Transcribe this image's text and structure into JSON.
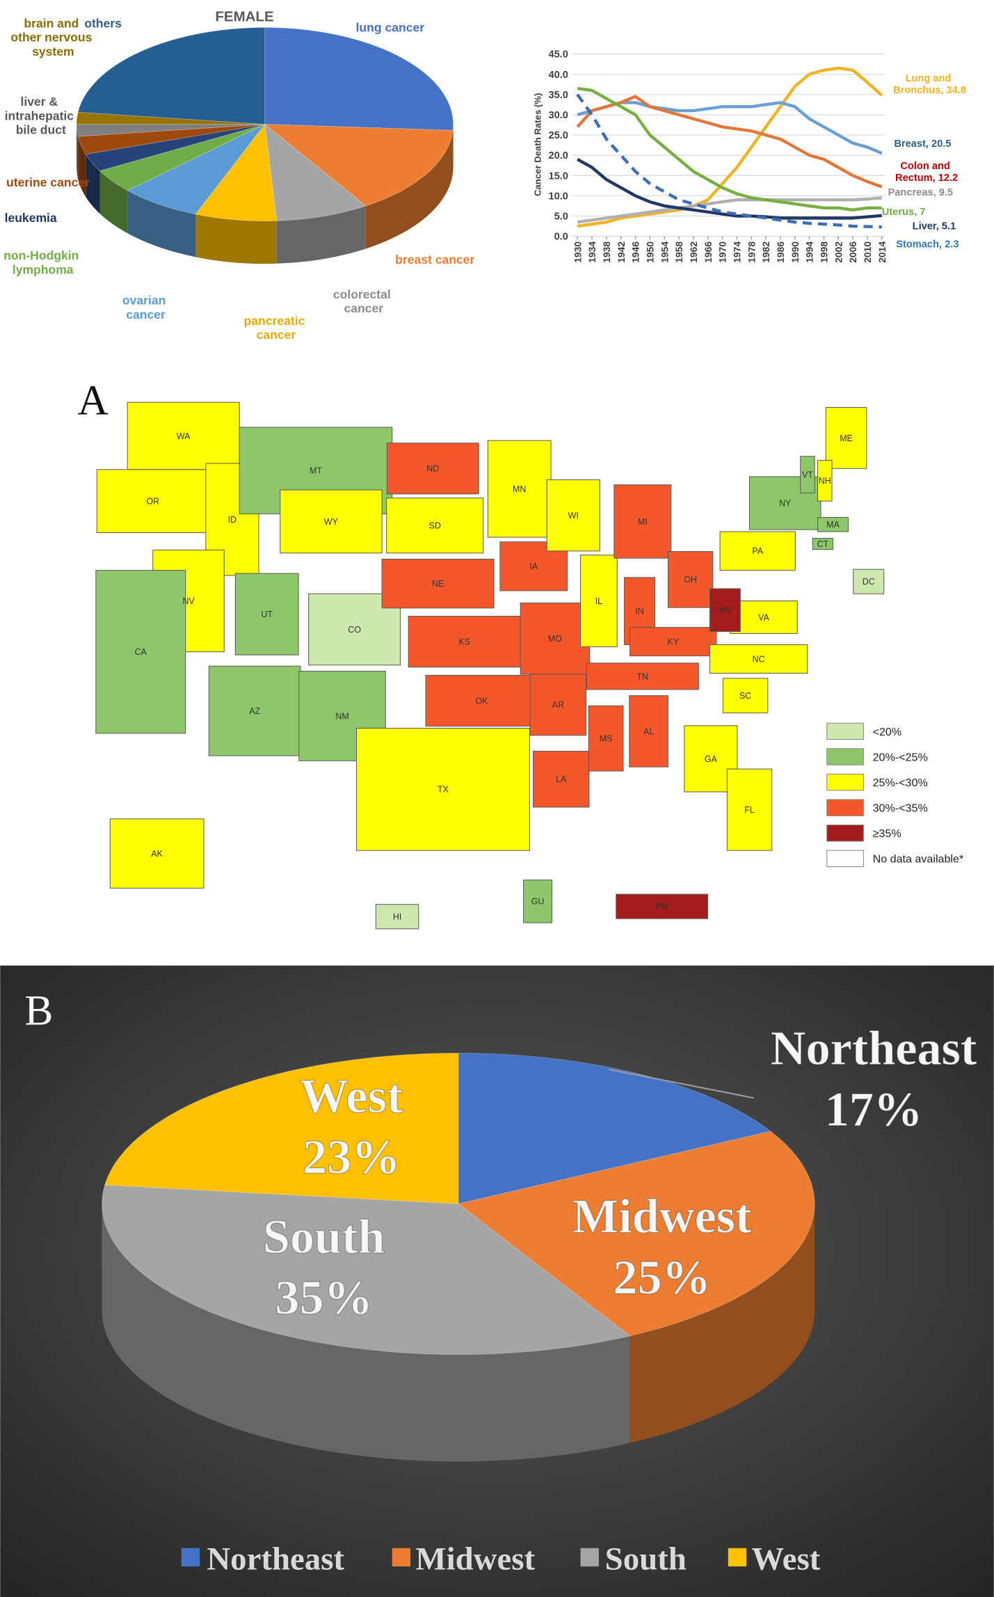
{
  "chart_data": [
    {
      "type": "pie3d",
      "title": "FEMALE",
      "categories": [
        "lung cancer",
        "breast cancer",
        "colorectal\ncancer",
        "pancreatic\ncancer",
        "ovarian\ncancer",
        "non-Hodgkin\nlymphoma",
        "leukemia",
        "uterine cancer",
        "liver &\nintrahepatic\nbile duct",
        "brain and\nother nervous\nsystem",
        "others"
      ],
      "values": [
        26,
        15,
        8,
        7,
        7,
        4,
        3,
        3,
        2,
        2,
        23
      ],
      "colors": [
        "#4472c4",
        "#ed7d31",
        "#a5a5a5",
        "#ffc000",
        "#5b9bd5",
        "#70ad47",
        "#264478",
        "#9e480e",
        "#7f7f7f",
        "#997300",
        "#255e91"
      ],
      "label_colors": [
        "#4472c4",
        "#ed7d31",
        "#8c8c8c",
        "#e6ac00",
        "#5b9bd5",
        "#70ad47",
        "#1f3864",
        "#9e480e",
        "#595959",
        "#8a6d00",
        "#2e5f8a"
      ]
    },
    {
      "type": "line",
      "ylabel": "Cancer Death Rates (%)",
      "x": [
        1930,
        1934,
        1938,
        1942,
        1946,
        1950,
        1954,
        1958,
        1962,
        1966,
        1970,
        1974,
        1978,
        1982,
        1986,
        1990,
        1994,
        1998,
        2002,
        2006,
        2010,
        2014
      ],
      "xlim": [
        1930,
        2014
      ],
      "xticks": [
        1930,
        1934,
        1938,
        1942,
        1946,
        1950,
        1954,
        1958,
        1962,
        1966,
        1970,
        1974,
        1978,
        1982,
        1986,
        1990,
        1994,
        1998,
        2002,
        2006,
        2010,
        2014
      ],
      "ylim": [
        0,
        45
      ],
      "yticks": [
        {
          "value": 0,
          "label": "0.0"
        },
        {
          "value": 5,
          "label": "5.0"
        },
        {
          "value": 10,
          "label": "10.0"
        },
        {
          "value": 15,
          "label": "15.0"
        },
        {
          "value": 20,
          "label": "20.0"
        },
        {
          "value": 25,
          "label": "25.0"
        },
        {
          "value": 30,
          "label": "30.0"
        },
        {
          "value": 35,
          "label": "35.0"
        },
        {
          "value": 40,
          "label": "40.0"
        },
        {
          "value": 45,
          "label": "45.0"
        }
      ],
      "grid": true,
      "series": [
        {
          "name": "Lung and\nBronchus, 34.8",
          "color": "#f0b323",
          "label_color": "#f0b323",
          "values": [
            2.5,
            3,
            3.5,
            4.5,
            5,
            5.5,
            6,
            6.5,
            7.5,
            9,
            13,
            17,
            22,
            27,
            32,
            37,
            40,
            41,
            41.5,
            41,
            38,
            34.8
          ]
        },
        {
          "name": "Breast, 20.5",
          "color": "#6a9fd4",
          "label_color": "#2e5f8a",
          "values": [
            30,
            31,
            32,
            33,
            33,
            32,
            31.5,
            31,
            31,
            31.5,
            32,
            32,
            32,
            32.5,
            33,
            32,
            29,
            27,
            25,
            23,
            22,
            20.5
          ]
        },
        {
          "name": "Colon and\nRectum, 12.2",
          "color": "#e2773b",
          "label_color": "#c00000",
          "values": [
            27,
            31,
            32,
            33,
            34.5,
            32,
            31,
            30,
            29,
            28,
            27,
            26.5,
            26,
            25,
            24,
            22,
            20,
            19,
            17,
            15,
            13.5,
            12.2
          ]
        },
        {
          "name": "Pancreas, 9.5",
          "color": "#b0b0b0",
          "label_color": "#8c8c8c",
          "values": [
            3.5,
            4,
            4.5,
            5,
            5.5,
            6,
            6.5,
            7,
            7.5,
            8,
            8.5,
            9,
            9,
            9,
            9,
            9,
            9,
            9,
            9,
            9,
            9.2,
            9.5
          ]
        },
        {
          "name": "Uterus, 7",
          "color": "#76b041",
          "label_color": "#70ad47",
          "values": [
            36.5,
            36,
            34,
            32,
            30,
            25,
            22,
            19,
            16,
            14,
            12,
            10.5,
            9.5,
            9,
            8.5,
            8,
            7.5,
            7,
            7,
            6.5,
            7,
            7
          ]
        },
        {
          "name": "Liver, 5.1",
          "color": "#1f3864",
          "label_color": "#1f3864",
          "values": [
            19,
            17,
            14,
            12,
            10,
            8.5,
            7.5,
            7,
            6.5,
            6,
            5.5,
            5,
            5,
            4.8,
            4.5,
            4.5,
            4.5,
            4.5,
            4.5,
            4.5,
            4.8,
            5.1
          ]
        },
        {
          "name": "Stomach, 2.3",
          "color": "#3d6eb5",
          "label_color": "#2e75b6",
          "dashed": true,
          "values": [
            35,
            30,
            24,
            20,
            16,
            13,
            11,
            9,
            8,
            7,
            6,
            5.5,
            5,
            4.5,
            4,
            3.5,
            3.2,
            3,
            2.8,
            2.5,
            2.4,
            2.3
          ]
        }
      ]
    },
    {
      "type": "map",
      "panel_label": "A",
      "legend": [
        {
          "label": "<20%",
          "color": "#cfe8b0"
        },
        {
          "label": "20%-<25%",
          "color": "#8dc76a"
        },
        {
          "label": "25%-<30%",
          "color": "#ffff00"
        },
        {
          "label": "30%-<35%",
          "color": "#f4582a"
        },
        {
          "label": "≥35%",
          "color": "#a51c1c"
        },
        {
          "label": "No data available*",
          "color": "#ffffff"
        }
      ],
      "regions": [
        {
          "label": "WA",
          "color": "#ffff00"
        },
        {
          "label": "OR",
          "color": "#ffff00"
        },
        {
          "label": "ID",
          "color": "#ffff00"
        },
        {
          "label": "MT",
          "color": "#8dc76a"
        },
        {
          "label": "WY",
          "color": "#ffff00"
        },
        {
          "label": "NV",
          "color": "#ffff00"
        },
        {
          "label": "CA",
          "color": "#8dc76a"
        },
        {
          "label": "UT",
          "color": "#8dc76a"
        },
        {
          "label": "CO",
          "color": "#cfe8b0"
        },
        {
          "label": "AZ",
          "color": "#8dc76a"
        },
        {
          "label": "NM",
          "color": "#8dc76a"
        },
        {
          "label": "ND",
          "color": "#f4582a"
        },
        {
          "label": "SD",
          "color": "#ffff00"
        },
        {
          "label": "NE",
          "color": "#f4582a"
        },
        {
          "label": "KS",
          "color": "#f4582a"
        },
        {
          "label": "OK",
          "color": "#f4582a"
        },
        {
          "label": "TX",
          "color": "#ffff00"
        },
        {
          "label": "MN",
          "color": "#ffff00"
        },
        {
          "label": "IA",
          "color": "#f4582a"
        },
        {
          "label": "MO",
          "color": "#f4582a"
        },
        {
          "label": "AR",
          "color": "#f4582a"
        },
        {
          "label": "LA",
          "color": "#f4582a"
        },
        {
          "label": "WI",
          "color": "#ffff00"
        },
        {
          "label": "IL",
          "color": "#ffff00"
        },
        {
          "label": "MI",
          "color": "#f4582a"
        },
        {
          "label": "IN",
          "color": "#f4582a"
        },
        {
          "label": "OH",
          "color": "#f4582a"
        },
        {
          "label": "KY",
          "color": "#f4582a"
        },
        {
          "label": "TN",
          "color": "#f4582a"
        },
        {
          "label": "MS",
          "color": "#f4582a"
        },
        {
          "label": "AL",
          "color": "#f4582a"
        },
        {
          "label": "GA",
          "color": "#ffff00"
        },
        {
          "label": "FL",
          "color": "#ffff00"
        },
        {
          "label": "SC",
          "color": "#ffff00"
        },
        {
          "label": "NC",
          "color": "#ffff00"
        },
        {
          "label": "VA",
          "color": "#ffff00"
        },
        {
          "label": "WV",
          "color": "#a51c1c"
        },
        {
          "label": "PA",
          "color": "#ffff00"
        },
        {
          "label": "NY",
          "color": "#8dc76a"
        },
        {
          "label": "ME",
          "color": "#ffff00"
        },
        {
          "label": "NH",
          "color": "#ffff00"
        },
        {
          "label": "VT",
          "color": "#8dc76a"
        },
        {
          "label": "MA",
          "color": "#8dc76a"
        },
        {
          "label": "CT",
          "color": "#8dc76a"
        },
        {
          "label": "DC",
          "color": "#cfe8b0"
        },
        {
          "label": "AK",
          "color": "#ffff00"
        },
        {
          "label": "HI",
          "color": "#cfe8b0"
        },
        {
          "label": "GU",
          "color": "#8dc76a"
        },
        {
          "label": "PR",
          "color": "#a51c1c"
        }
      ]
    },
    {
      "type": "pie3d",
      "panel_label": "B",
      "categories": [
        "Northeast",
        "Midwest",
        "South",
        "West"
      ],
      "values": [
        17,
        25,
        35,
        23
      ],
      "value_labels": [
        "17%",
        "25%",
        "35%",
        "23%"
      ],
      "colors": [
        "#4472c4",
        "#ed7d31",
        "#a5a5a5",
        "#ffc000"
      ]
    }
  ]
}
